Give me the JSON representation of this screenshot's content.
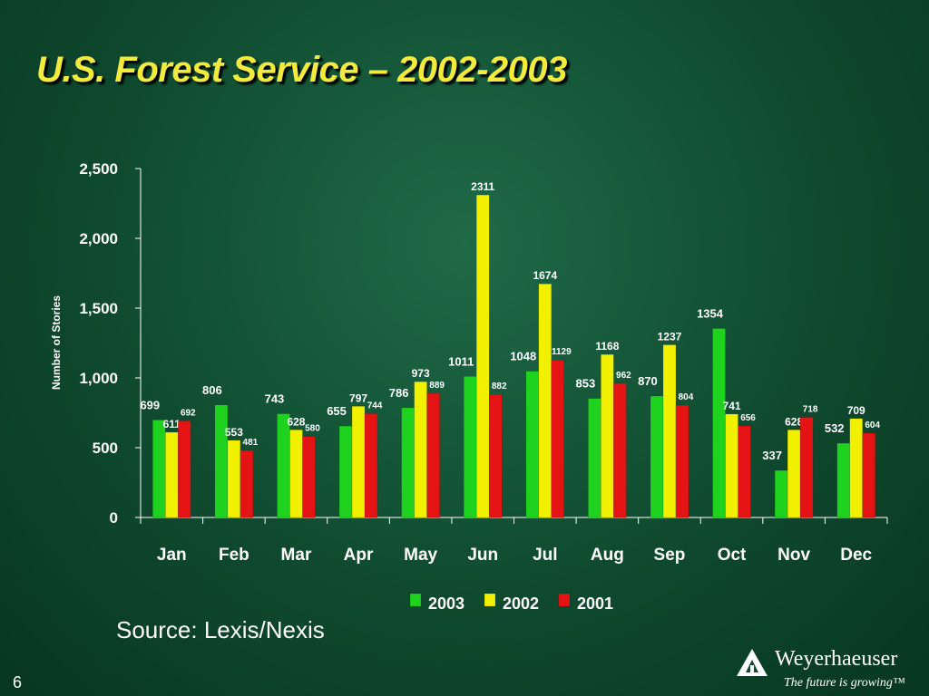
{
  "slide": {
    "title": "U.S. Forest Service – 2002-2003",
    "source": "Source: Lexis/Nexis",
    "page_number": "6",
    "logo_name": "Weyerhaeuser",
    "logo_tagline": "The future is growing™"
  },
  "colors": {
    "background": "#0f4a2f",
    "title": "#f2ea3c",
    "series_2003": "#1fd21f",
    "series_2002": "#f0f000",
    "series_2001": "#e41414"
  },
  "chart_data": {
    "type": "bar",
    "title": "",
    "xlabel": "",
    "ylabel": "Number of Stories",
    "ylim": [
      0,
      2500
    ],
    "yticks": [
      0,
      500,
      1000,
      1500,
      2000,
      2500
    ],
    "ytick_labels": [
      "0",
      "500",
      "1,000",
      "1,500",
      "2,000",
      "2,500"
    ],
    "categories": [
      "Jan",
      "Feb",
      "Mar",
      "Apr",
      "May",
      "Jun",
      "Jul",
      "Aug",
      "Sep",
      "Oct",
      "Nov",
      "Dec"
    ],
    "series": [
      {
        "name": "2003",
        "color": "#1fd21f",
        "values": [
          699,
          806,
          743,
          655,
          786,
          1011,
          1048,
          853,
          870,
          1354,
          337,
          532
        ]
      },
      {
        "name": "2002",
        "color": "#f0f000",
        "values": [
          611,
          553,
          628,
          797,
          973,
          2311,
          1674,
          1168,
          1237,
          741,
          628,
          709
        ]
      },
      {
        "name": "2001",
        "color": "#e41414",
        "values": [
          692,
          481,
          580,
          744,
          889,
          882,
          1129,
          962,
          804,
          656,
          718,
          604
        ]
      }
    ],
    "legend": "bottom",
    "grid": false,
    "data_labels": true
  }
}
